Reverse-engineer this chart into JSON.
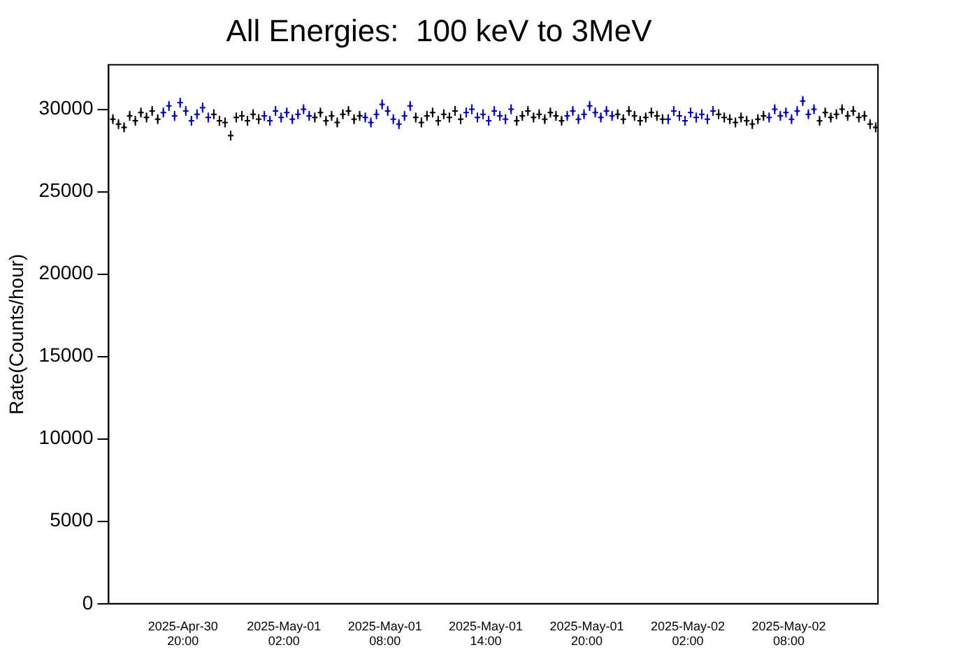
{
  "chart_data": {
    "type": "scatter",
    "title": "All Energies:  100 keV to 3MeV",
    "ylabel": "Rate(Counts/hour)",
    "xlim": [
      "2025-04-30T15:35",
      "2025-05-02T13:18"
    ],
    "ylim": [
      0,
      32700
    ],
    "xticks": [
      {
        "value": "2025-04-30T20:00",
        "label": "2025-Apr-30\n20:00"
      },
      {
        "value": "2025-05-01T02:00",
        "label": "2025-May-01\n02:00"
      },
      {
        "value": "2025-05-01T08:00",
        "label": "2025-May-01\n08:00"
      },
      {
        "value": "2025-05-01T14:00",
        "label": "2025-May-01\n14:00"
      },
      {
        "value": "2025-05-01T20:00",
        "label": "2025-May-01\n20:00"
      },
      {
        "value": "2025-05-02T02:00",
        "label": "2025-May-02\n02:00"
      },
      {
        "value": "2025-05-02T08:00",
        "label": "2025-May-02\n08:00"
      }
    ],
    "yticks": [
      0,
      5000,
      10000,
      15000,
      20000,
      25000,
      30000
    ],
    "grid": false,
    "legend": false,
    "marker": "cross",
    "series": [
      {
        "color": "#000000",
        "x": [
          "2025-04-30T15:50",
          "2025-04-30T16:10",
          "2025-04-30T16:30",
          "2025-04-30T16:50",
          "2025-04-30T17:10",
          "2025-04-30T17:30",
          "2025-04-30T17:50",
          "2025-04-30T18:10",
          "2025-04-30T18:30",
          "2025-04-30T21:50",
          "2025-04-30T22:10",
          "2025-04-30T22:30",
          "2025-04-30T22:50",
          "2025-04-30T23:10",
          "2025-04-30T23:30",
          "2025-04-30T23:50",
          "2025-05-01T00:10",
          "2025-05-01T00:30",
          "2025-05-01T03:50",
          "2025-05-01T04:10",
          "2025-05-01T04:30",
          "2025-05-01T04:50",
          "2025-05-01T05:10",
          "2025-05-01T05:30",
          "2025-05-01T05:50",
          "2025-05-01T06:10",
          "2025-05-01T06:30",
          "2025-05-01T09:50",
          "2025-05-01T10:10",
          "2025-05-01T10:30",
          "2025-05-01T10:50",
          "2025-05-01T11:10",
          "2025-05-01T11:30",
          "2025-05-01T11:50",
          "2025-05-01T12:10",
          "2025-05-01T12:30",
          "2025-05-01T15:50",
          "2025-05-01T16:10",
          "2025-05-01T16:30",
          "2025-05-01T16:50",
          "2025-05-01T17:10",
          "2025-05-01T17:30",
          "2025-05-01T17:50",
          "2025-05-01T18:10",
          "2025-05-01T18:30",
          "2025-05-01T21:50",
          "2025-05-01T22:10",
          "2025-05-01T22:30",
          "2025-05-01T22:50",
          "2025-05-01T23:10",
          "2025-05-01T23:30",
          "2025-05-01T23:50",
          "2025-05-02T00:10",
          "2025-05-02T00:30",
          "2025-05-02T03:50",
          "2025-05-02T04:10",
          "2025-05-02T04:30",
          "2025-05-02T04:50",
          "2025-05-02T05:10",
          "2025-05-02T05:30",
          "2025-05-02T05:50",
          "2025-05-02T06:10",
          "2025-05-02T06:30",
          "2025-05-02T09:50",
          "2025-05-02T10:10",
          "2025-05-02T10:30",
          "2025-05-02T10:50",
          "2025-05-02T11:10",
          "2025-05-02T11:30",
          "2025-05-02T11:50",
          "2025-05-02T12:10",
          "2025-05-02T12:30",
          "2025-05-02T12:50",
          "2025-05-02T13:10"
        ],
        "values": [
          29400,
          29100,
          28900,
          29600,
          29300,
          29800,
          29500,
          29900,
          29400,
          29700,
          29300,
          29200,
          28400,
          29500,
          29600,
          29300,
          29700,
          29400,
          29500,
          29800,
          29300,
          29600,
          29200,
          29700,
          29900,
          29400,
          29600,
          29500,
          29200,
          29600,
          29800,
          29300,
          29700,
          29500,
          29900,
          29400,
          29300,
          29600,
          29900,
          29500,
          29700,
          29400,
          29800,
          29600,
          29300,
          29700,
          29400,
          29900,
          29600,
          29300,
          29500,
          29800,
          29600,
          29400,
          29700,
          29500,
          29400,
          29200,
          29500,
          29300,
          29100,
          29400,
          29600,
          29300,
          29800,
          29500,
          29700,
          30000,
          29600,
          29900,
          29500,
          29600,
          29100,
          28900
        ],
        "errors": [
          300,
          300,
          300,
          300,
          300,
          300,
          300,
          300,
          300,
          300,
          300,
          300,
          300,
          300,
          300,
          300,
          300,
          300,
          300,
          300,
          300,
          300,
          300,
          300,
          300,
          300,
          300,
          300,
          300,
          300,
          300,
          300,
          300,
          300,
          300,
          300,
          300,
          300,
          300,
          300,
          300,
          300,
          300,
          300,
          300,
          300,
          300,
          300,
          300,
          300,
          300,
          300,
          300,
          300,
          300,
          300,
          300,
          300,
          300,
          300,
          300,
          300,
          300,
          300,
          300,
          300,
          300,
          300,
          300,
          300,
          300,
          300,
          300,
          300
        ]
      },
      {
        "color": "#0000aa",
        "x": [
          "2025-04-30T18:50",
          "2025-04-30T19:10",
          "2025-04-30T19:30",
          "2025-04-30T19:50",
          "2025-04-30T20:10",
          "2025-04-30T20:30",
          "2025-04-30T20:50",
          "2025-04-30T21:10",
          "2025-04-30T21:30",
          "2025-05-01T00:50",
          "2025-05-01T01:10",
          "2025-05-01T01:30",
          "2025-05-01T01:50",
          "2025-05-01T02:10",
          "2025-05-01T02:30",
          "2025-05-01T02:50",
          "2025-05-01T03:10",
          "2025-05-01T03:30",
          "2025-05-01T06:50",
          "2025-05-01T07:10",
          "2025-05-01T07:30",
          "2025-05-01T07:50",
          "2025-05-01T08:10",
          "2025-05-01T08:30",
          "2025-05-01T08:50",
          "2025-05-01T09:10",
          "2025-05-01T09:30",
          "2025-05-01T12:50",
          "2025-05-01T13:10",
          "2025-05-01T13:30",
          "2025-05-01T13:50",
          "2025-05-01T14:10",
          "2025-05-01T14:30",
          "2025-05-01T14:50",
          "2025-05-01T15:10",
          "2025-05-01T15:30",
          "2025-05-01T18:50",
          "2025-05-01T19:10",
          "2025-05-01T19:30",
          "2025-05-01T19:50",
          "2025-05-01T20:10",
          "2025-05-01T20:30",
          "2025-05-01T20:50",
          "2025-05-01T21:10",
          "2025-05-01T21:30",
          "2025-05-02T00:50",
          "2025-05-02T01:10",
          "2025-05-02T01:30",
          "2025-05-02T01:50",
          "2025-05-02T02:10",
          "2025-05-02T02:30",
          "2025-05-02T02:50",
          "2025-05-02T03:10",
          "2025-05-02T03:30",
          "2025-05-02T06:50",
          "2025-05-02T07:10",
          "2025-05-02T07:30",
          "2025-05-02T07:50",
          "2025-05-02T08:10",
          "2025-05-02T08:30",
          "2025-05-02T08:50",
          "2025-05-02T09:10",
          "2025-05-02T09:30"
        ],
        "values": [
          29800,
          30200,
          29600,
          30400,
          29900,
          29300,
          29700,
          30100,
          29500,
          29600,
          29300,
          29900,
          29500,
          29800,
          29400,
          29700,
          30000,
          29600,
          29500,
          29200,
          29700,
          30300,
          29900,
          29400,
          29100,
          29600,
          30200,
          29800,
          30000,
          29500,
          29700,
          29300,
          29900,
          29600,
          29400,
          30000,
          29600,
          29900,
          29400,
          29700,
          30200,
          29800,
          29500,
          29900,
          29600,
          29400,
          29900,
          29600,
          29300,
          29800,
          29500,
          29700,
          29400,
          29900,
          29500,
          30000,
          29600,
          29800,
          29400,
          29900,
          30500,
          29700,
          30000
        ],
        "errors": [
          300,
          300,
          300,
          300,
          300,
          300,
          300,
          300,
          300,
          300,
          300,
          300,
          300,
          300,
          300,
          300,
          300,
          300,
          300,
          300,
          300,
          300,
          300,
          300,
          300,
          300,
          300,
          300,
          300,
          300,
          300,
          300,
          300,
          300,
          300,
          300,
          300,
          300,
          300,
          300,
          300,
          300,
          300,
          300,
          300,
          300,
          300,
          300,
          300,
          300,
          300,
          300,
          300,
          300,
          300,
          300,
          300,
          300,
          300,
          300,
          300,
          300,
          300
        ]
      }
    ]
  }
}
